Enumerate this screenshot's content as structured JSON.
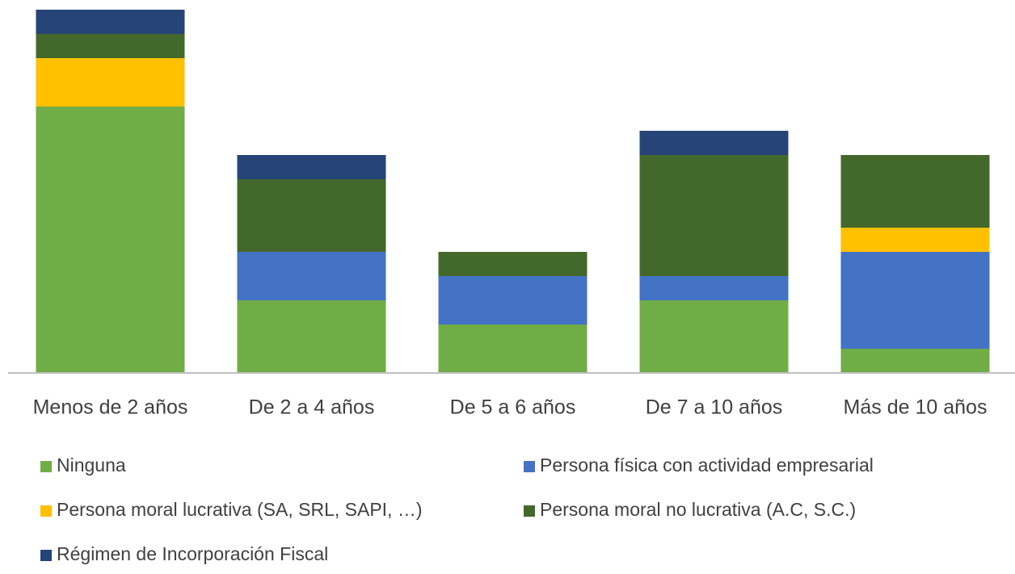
{
  "chart_data": {
    "type": "stacked_bar",
    "categories": [
      "Menos de 2 años",
      "De 2 a 4 años",
      "De 5 a 6 años",
      "De 7 a 10 años",
      "Más de 10 años"
    ],
    "series": [
      {
        "name": "Ninguna",
        "color": "#70ad47",
        "values": [
          11,
          3,
          2,
          3,
          1
        ]
      },
      {
        "name": "Persona física con actividad empresarial",
        "color": "#4472c4",
        "values": [
          0,
          2,
          2,
          1,
          4
        ]
      },
      {
        "name": "Persona moral lucrativa (SA, SRL, SAPI, …)",
        "color": "#ffc000",
        "values": [
          2,
          0,
          0,
          0,
          1
        ]
      },
      {
        "name": "Persona moral no lucrativa (A.C, S.C.)",
        "color": "#43682b",
        "values": [
          1,
          3,
          1,
          5,
          3
        ]
      },
      {
        "name": "Régimen de Incorporación Fiscal",
        "color": "#264478",
        "values": [
          1,
          1,
          0,
          1,
          0
        ]
      }
    ],
    "legend": "bottom"
  }
}
